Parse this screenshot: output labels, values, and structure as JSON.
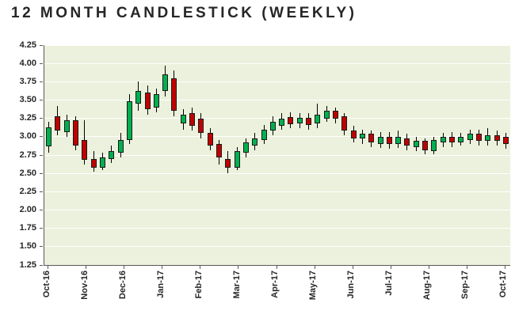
{
  "title": "12 MONTH CANDLESTICK (WEEKLY)",
  "chart_data": {
    "type": "candlestick",
    "title": "12 MONTH CANDLESTICK (WEEKLY)",
    "interval": "weekly",
    "ylim": [
      1.25,
      4.25
    ],
    "y_tick_labels": [
      "4.25",
      "4.00",
      "3.75",
      "3.50",
      "3.25",
      "3.00",
      "2.75",
      "2.50",
      "2.25",
      "2.00",
      "1.75",
      "1.50",
      "1.25"
    ],
    "x_tick_labels": [
      "Oct-16",
      "Nov-16",
      "Dec-16",
      "Jan-17",
      "Feb-17",
      "Mar-17",
      "Apr-17",
      "May-17",
      "Jun-17",
      "Jul-17",
      "Aug-17",
      "Sep-17",
      "Oct-17"
    ],
    "grid": true,
    "legend": "none",
    "colors": {
      "up": "#00B050",
      "down": "#C00000",
      "wick": "#000000",
      "plot_bg": "#EBF1DC",
      "grid": "#FFFFFF",
      "axis": "#595959",
      "text": "#262626"
    },
    "candles": [
      {
        "o": 2.87,
        "h": 3.2,
        "l": 2.78,
        "c": 3.13
      },
      {
        "o": 3.28,
        "h": 3.42,
        "l": 3.02,
        "c": 3.08
      },
      {
        "o": 3.06,
        "h": 3.3,
        "l": 3.0,
        "c": 3.22
      },
      {
        "o": 3.22,
        "h": 3.28,
        "l": 2.82,
        "c": 2.88
      },
      {
        "o": 2.95,
        "h": 3.22,
        "l": 2.62,
        "c": 2.68
      },
      {
        "o": 2.7,
        "h": 2.8,
        "l": 2.52,
        "c": 2.58
      },
      {
        "o": 2.58,
        "h": 2.78,
        "l": 2.54,
        "c": 2.72
      },
      {
        "o": 2.7,
        "h": 2.88,
        "l": 2.64,
        "c": 2.8
      },
      {
        "o": 2.78,
        "h": 3.05,
        "l": 2.72,
        "c": 2.96
      },
      {
        "o": 2.95,
        "h": 3.58,
        "l": 2.9,
        "c": 3.48
      },
      {
        "o": 3.45,
        "h": 3.75,
        "l": 3.35,
        "c": 3.62
      },
      {
        "o": 3.6,
        "h": 3.7,
        "l": 3.3,
        "c": 3.38
      },
      {
        "o": 3.4,
        "h": 3.66,
        "l": 3.33,
        "c": 3.58
      },
      {
        "o": 3.62,
        "h": 3.97,
        "l": 3.55,
        "c": 3.85
      },
      {
        "o": 3.8,
        "h": 3.9,
        "l": 3.28,
        "c": 3.35
      },
      {
        "o": 3.18,
        "h": 3.38,
        "l": 3.1,
        "c": 3.3
      },
      {
        "o": 3.32,
        "h": 3.4,
        "l": 3.08,
        "c": 3.15
      },
      {
        "o": 3.25,
        "h": 3.32,
        "l": 2.98,
        "c": 3.05
      },
      {
        "o": 3.05,
        "h": 3.12,
        "l": 2.82,
        "c": 2.88
      },
      {
        "o": 2.9,
        "h": 2.96,
        "l": 2.62,
        "c": 2.72
      },
      {
        "o": 2.7,
        "h": 2.8,
        "l": 2.5,
        "c": 2.58
      },
      {
        "o": 2.58,
        "h": 2.86,
        "l": 2.54,
        "c": 2.8
      },
      {
        "o": 2.78,
        "h": 2.98,
        "l": 2.72,
        "c": 2.92
      },
      {
        "o": 2.88,
        "h": 3.05,
        "l": 2.82,
        "c": 2.98
      },
      {
        "o": 2.95,
        "h": 3.16,
        "l": 2.9,
        "c": 3.1
      },
      {
        "o": 3.08,
        "h": 3.28,
        "l": 3.02,
        "c": 3.2
      },
      {
        "o": 3.15,
        "h": 3.32,
        "l": 3.1,
        "c": 3.25
      },
      {
        "o": 3.27,
        "h": 3.33,
        "l": 3.12,
        "c": 3.17
      },
      {
        "o": 3.18,
        "h": 3.32,
        "l": 3.12,
        "c": 3.26
      },
      {
        "o": 3.26,
        "h": 3.32,
        "l": 3.1,
        "c": 3.16
      },
      {
        "o": 3.18,
        "h": 3.45,
        "l": 3.12,
        "c": 3.3
      },
      {
        "o": 3.25,
        "h": 3.42,
        "l": 3.2,
        "c": 3.35
      },
      {
        "o": 3.35,
        "h": 3.4,
        "l": 3.18,
        "c": 3.25
      },
      {
        "o": 3.28,
        "h": 3.32,
        "l": 3.02,
        "c": 3.08
      },
      {
        "o": 3.08,
        "h": 3.15,
        "l": 2.92,
        "c": 2.98
      },
      {
        "o": 2.98,
        "h": 3.1,
        "l": 2.9,
        "c": 3.04
      },
      {
        "o": 3.04,
        "h": 3.08,
        "l": 2.86,
        "c": 2.92
      },
      {
        "o": 2.9,
        "h": 3.06,
        "l": 2.85,
        "c": 3.0
      },
      {
        "o": 3.0,
        "h": 3.06,
        "l": 2.84,
        "c": 2.9
      },
      {
        "o": 2.9,
        "h": 3.08,
        "l": 2.85,
        "c": 3.0
      },
      {
        "o": 2.98,
        "h": 3.04,
        "l": 2.82,
        "c": 2.88
      },
      {
        "o": 2.86,
        "h": 3.0,
        "l": 2.8,
        "c": 2.94
      },
      {
        "o": 2.94,
        "h": 2.98,
        "l": 2.76,
        "c": 2.82
      },
      {
        "o": 2.8,
        "h": 3.0,
        "l": 2.76,
        "c": 2.95
      },
      {
        "o": 2.92,
        "h": 3.05,
        "l": 2.86,
        "c": 3.0
      },
      {
        "o": 3.0,
        "h": 3.06,
        "l": 2.86,
        "c": 2.92
      },
      {
        "o": 2.92,
        "h": 3.05,
        "l": 2.88,
        "c": 3.0
      },
      {
        "o": 2.96,
        "h": 3.1,
        "l": 2.9,
        "c": 3.04
      },
      {
        "o": 3.04,
        "h": 3.1,
        "l": 2.88,
        "c": 2.94
      },
      {
        "o": 2.94,
        "h": 3.12,
        "l": 2.88,
        "c": 3.02
      },
      {
        "o": 3.02,
        "h": 3.08,
        "l": 2.88,
        "c": 2.94
      },
      {
        "o": 3.0,
        "h": 3.05,
        "l": 2.84,
        "c": 2.9
      }
    ]
  }
}
